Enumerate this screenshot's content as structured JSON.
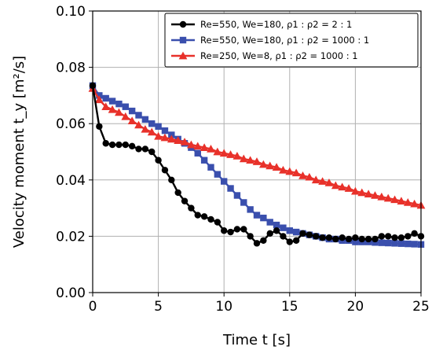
{
  "chart_data": {
    "type": "line",
    "title": "",
    "xlabel": "Time t [s]",
    "ylabel": "Velocity moment t_y [m²/s]",
    "xlim": [
      0,
      25
    ],
    "ylim": [
      0,
      0.1
    ],
    "xticks": [
      0,
      5,
      10,
      15,
      20,
      25
    ],
    "xtick_labels": [
      "0",
      "5",
      "10",
      "15",
      "20",
      "25"
    ],
    "yticks": [
      0,
      0.02,
      0.04,
      0.06,
      0.08,
      0.1
    ],
    "ytick_labels": [
      "0.00",
      "0.02",
      "0.04",
      "0.06",
      "0.08",
      "0.10"
    ],
    "grid": true,
    "legend_position": "top-right",
    "series": [
      {
        "name": "Re=550, We=180, ρ1 : ρ2 = 2 : 1",
        "color": "#000000",
        "marker": "circle",
        "x": [
          0,
          0.5,
          1,
          1.5,
          2,
          2.5,
          3,
          3.5,
          4,
          4.5,
          5,
          5.5,
          6,
          6.5,
          7,
          7.5,
          8,
          8.5,
          9,
          9.5,
          10,
          10.5,
          11,
          11.5,
          12,
          12.5,
          13,
          13.5,
          14,
          14.5,
          15,
          15.5,
          16,
          16.5,
          17,
          17.5,
          18,
          18.5,
          19,
          19.5,
          20,
          20.5,
          21,
          21.5,
          22,
          22.5,
          23,
          23.5,
          24,
          24.5,
          25
        ],
        "y": [
          0.0735,
          0.059,
          0.053,
          0.0525,
          0.0525,
          0.0525,
          0.052,
          0.051,
          0.051,
          0.05,
          0.047,
          0.0435,
          0.04,
          0.0355,
          0.0325,
          0.03,
          0.0275,
          0.027,
          0.026,
          0.025,
          0.022,
          0.0215,
          0.0225,
          0.0225,
          0.02,
          0.0175,
          0.0185,
          0.021,
          0.022,
          0.02,
          0.018,
          0.0185,
          0.021,
          0.0205,
          0.02,
          0.0195,
          0.0195,
          0.019,
          0.0195,
          0.019,
          0.0195,
          0.019,
          0.019,
          0.019,
          0.02,
          0.02,
          0.0195,
          0.0195,
          0.02,
          0.021,
          0.02
        ]
      },
      {
        "name": "Re=550, We=180, ρ1 : ρ2 = 1000 : 1",
        "color": "#3a4fad",
        "marker": "square",
        "x": [
          0,
          0.5,
          1,
          1.5,
          2,
          2.5,
          3,
          3.5,
          4,
          4.5,
          5,
          5.5,
          6,
          6.5,
          7,
          7.5,
          8,
          8.5,
          9,
          9.5,
          10,
          10.5,
          11,
          11.5,
          12,
          12.5,
          13,
          13.5,
          14,
          14.5,
          15,
          15.5,
          16,
          16.5,
          17,
          17.5,
          18,
          18.5,
          19,
          19.5,
          20,
          20.5,
          21,
          21.5,
          22,
          22.5,
          23,
          23.5,
          24,
          24.5,
          25
        ],
        "y": [
          0.0735,
          0.07,
          0.069,
          0.068,
          0.067,
          0.066,
          0.0645,
          0.063,
          0.0615,
          0.06,
          0.059,
          0.0575,
          0.056,
          0.0545,
          0.053,
          0.0515,
          0.0495,
          0.047,
          0.0445,
          0.042,
          0.0395,
          0.037,
          0.0345,
          0.032,
          0.0295,
          0.0275,
          0.0265,
          0.025,
          0.024,
          0.023,
          0.022,
          0.0215,
          0.021,
          0.0205,
          0.02,
          0.0195,
          0.019,
          0.019,
          0.0185,
          0.0185,
          0.018,
          0.018,
          0.018,
          0.0178,
          0.0177,
          0.0176,
          0.0175,
          0.0174,
          0.0173,
          0.0172,
          0.0171
        ]
      },
      {
        "name": "Re=250, We=8, ρ1 : ρ2 = 1000 : 1",
        "color": "#e8312a",
        "marker": "triangle",
        "x": [
          0,
          0.5,
          1,
          1.5,
          2,
          2.5,
          3,
          3.5,
          4,
          4.5,
          5,
          5.5,
          6,
          6.5,
          7,
          7.5,
          8,
          8.5,
          9,
          9.5,
          10,
          10.5,
          11,
          11.5,
          12,
          12.5,
          13,
          13.5,
          14,
          14.5,
          15,
          15.5,
          16,
          16.5,
          17,
          17.5,
          18,
          18.5,
          19,
          19.5,
          20,
          20.5,
          21,
          21.5,
          22,
          22.5,
          23,
          23.5,
          24,
          24.5,
          25
        ],
        "y": [
          0.0725,
          0.0685,
          0.066,
          0.065,
          0.064,
          0.0625,
          0.061,
          0.0595,
          0.058,
          0.057,
          0.0555,
          0.055,
          0.0545,
          0.054,
          0.0535,
          0.0525,
          0.052,
          0.0515,
          0.051,
          0.05,
          0.0495,
          0.049,
          0.0485,
          0.0475,
          0.047,
          0.0465,
          0.0455,
          0.045,
          0.0445,
          0.0435,
          0.043,
          0.0425,
          0.0415,
          0.041,
          0.04,
          0.0395,
          0.039,
          0.038,
          0.0375,
          0.037,
          0.036,
          0.0355,
          0.035,
          0.0345,
          0.034,
          0.0335,
          0.033,
          0.0325,
          0.032,
          0.0315,
          0.031
        ]
      }
    ]
  }
}
